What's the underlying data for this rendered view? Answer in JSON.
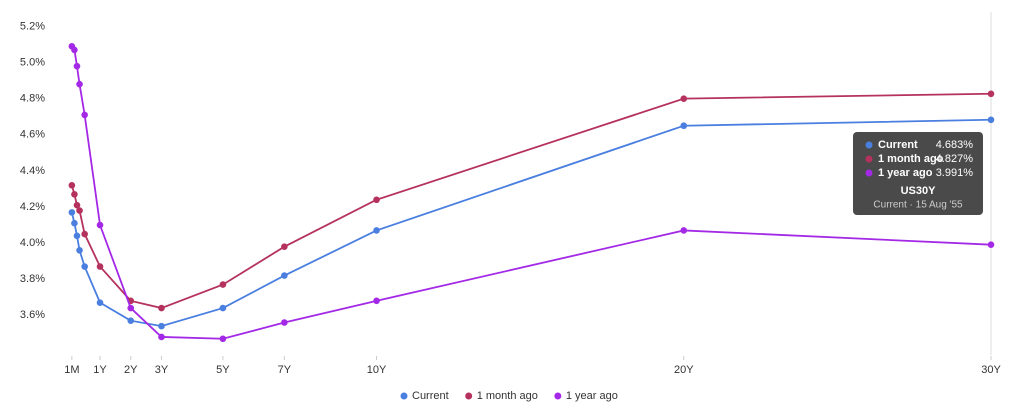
{
  "chart_data": {
    "type": "line",
    "x": [
      0.0833,
      0.1667,
      0.25,
      0.3333,
      0.5,
      1,
      2,
      3,
      5,
      7,
      10,
      20,
      30
    ],
    "xlim": [
      0,
      30
    ],
    "xticks": [
      {
        "value": 0.0833,
        "label": "1M"
      },
      {
        "value": 1,
        "label": "1Y"
      },
      {
        "value": 2,
        "label": "2Y"
      },
      {
        "value": 3,
        "label": "3Y"
      },
      {
        "value": 5,
        "label": "5Y"
      },
      {
        "value": 7,
        "label": "7Y"
      },
      {
        "value": 10,
        "label": "10Y"
      },
      {
        "value": 20,
        "label": "20Y"
      },
      {
        "value": 30,
        "label": "30Y"
      }
    ],
    "ylim": [
      3.38,
      5.28
    ],
    "yticks": [
      {
        "value": 3.6,
        "label": "3.6%"
      },
      {
        "value": 3.8,
        "label": "3.8%"
      },
      {
        "value": 4.0,
        "label": "4.0%"
      },
      {
        "value": 4.2,
        "label": "4.2%"
      },
      {
        "value": 4.4,
        "label": "4.4%"
      },
      {
        "value": 4.6,
        "label": "4.6%"
      },
      {
        "value": 4.8,
        "label": "4.8%"
      },
      {
        "value": 5.0,
        "label": "5.0%"
      },
      {
        "value": 5.2,
        "label": "5.2%"
      }
    ],
    "series": [
      {
        "name": "Current",
        "color": "#4a7fe0",
        "values": [
          4.17,
          4.11,
          4.04,
          3.96,
          3.87,
          3.67,
          3.57,
          3.54,
          3.64,
          3.82,
          4.07,
          4.65,
          4.683
        ]
      },
      {
        "name": "1 month ago",
        "color": "#b5325e",
        "values": [
          4.32,
          4.27,
          4.21,
          4.18,
          4.05,
          3.87,
          3.68,
          3.64,
          3.77,
          3.98,
          4.24,
          4.8,
          4.827
        ]
      },
      {
        "name": "1 year ago",
        "color": "#a429e6",
        "values": [
          5.09,
          5.07,
          4.98,
          4.88,
          4.71,
          4.1,
          3.64,
          3.48,
          3.47,
          3.56,
          3.68,
          4.07,
          3.991
        ]
      }
    ],
    "tooltip": {
      "values": [
        "4.683%",
        "4.827%",
        "3.991%"
      ],
      "title": "US30Y",
      "subtitle": "Current · 15 Aug '55"
    }
  }
}
